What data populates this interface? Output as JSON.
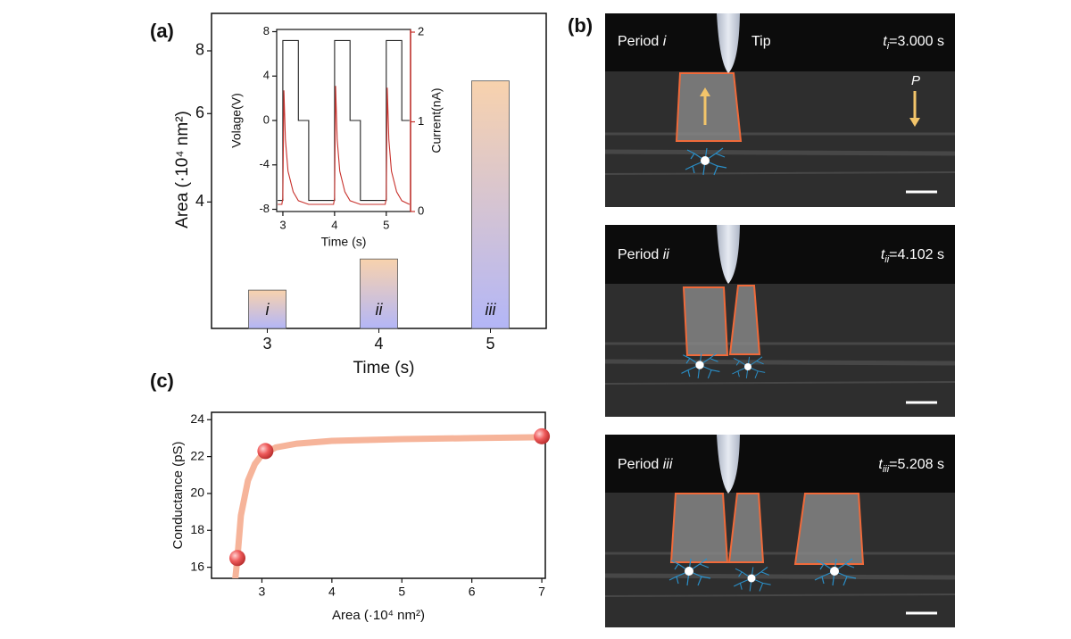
{
  "panel_labels": {
    "a": "(a)",
    "b": "(b)",
    "c": "(c)"
  },
  "chart_data": [
    {
      "type": "bar",
      "xlabel": "Time (s)",
      "ylabel": "Area (·10⁴ nm²)",
      "categories": [
        "3",
        "4",
        "5"
      ],
      "values": [
        2.67,
        3.08,
        6.97
      ],
      "bar_labels": [
        "i",
        "ii",
        "iii"
      ],
      "ylim": [
        2.24,
        9.5
      ],
      "yticks": [
        4,
        6,
        8
      ],
      "log_y": true,
      "colors": [
        "#f8d2ad",
        "#b3b6f7"
      ]
    },
    {
      "type": "line",
      "xlabel": "Time (s)",
      "ylabel": "Volage(V)",
      "y2label": "Current(nA)",
      "xlim": [
        2.88,
        5.47
      ],
      "xticks": [
        3,
        4,
        5
      ],
      "ylim": [
        -8.2,
        8.2
      ],
      "yticks": [
        -8,
        -4,
        0,
        4,
        8
      ],
      "y2lim": [
        0,
        2.03
      ],
      "y2ticks": [
        0,
        1,
        2
      ],
      "y2color": "#c8322d",
      "series": [
        {
          "color": "#222222",
          "x": [
            2.9,
            3.0,
            3.0,
            3.3,
            3.3,
            3.5,
            3.5,
            4.0,
            4.0,
            4.3,
            4.3,
            4.5,
            4.5,
            5.0,
            5.0,
            5.3,
            5.3,
            5.45
          ],
          "values": [
            -7.2,
            -7.2,
            7.2,
            7.2,
            0,
            0,
            -7.2,
            -7.2,
            7.2,
            7.2,
            0,
            0,
            -7.2,
            -7.2,
            7.2,
            7.2,
            0,
            0
          ]
        },
        {
          "color": "#c8322d",
          "axis": "y2",
          "x": [
            2.9,
            2.98,
            3.0,
            3.02,
            3.05,
            3.1,
            3.2,
            3.3,
            3.5,
            3.9,
            3.98,
            4.0,
            4.02,
            4.05,
            4.1,
            4.2,
            4.3,
            4.5,
            4.9,
            4.98,
            5.0,
            5.02,
            5.05,
            5.1,
            5.2,
            5.3,
            5.45
          ],
          "values": [
            0.08,
            0.08,
            0.15,
            1.35,
            0.8,
            0.45,
            0.22,
            0.12,
            0.08,
            0.08,
            0.08,
            0.15,
            1.4,
            0.8,
            0.45,
            0.22,
            0.12,
            0.08,
            0.08,
            0.08,
            0.15,
            1.38,
            0.8,
            0.45,
            0.22,
            0.12,
            0.08
          ]
        }
      ]
    },
    {
      "type": "scatter",
      "xlabel": "Area (·10⁴ nm²)",
      "ylabel": "Conductance (pS)",
      "xlim": [
        2.28,
        7.05
      ],
      "xticks": [
        3,
        4,
        5,
        6,
        7
      ],
      "ylim": [
        15.4,
        24.4
      ],
      "yticks": [
        16,
        18,
        20,
        22,
        24
      ],
      "series": [
        {
          "type": "line",
          "color": "#f6b49a",
          "x": [
            2.62,
            2.65,
            2.7,
            2.8,
            2.9,
            3.0,
            3.2,
            3.5,
            4,
            5,
            6,
            7
          ],
          "values": [
            15.4,
            16.5,
            18.8,
            20.7,
            21.6,
            22.1,
            22.5,
            22.7,
            22.85,
            22.95,
            23.0,
            23.05
          ]
        },
        {
          "type": "scatter",
          "color": "#ee5a5a",
          "x": [
            2.65,
            3.05,
            7.0
          ],
          "values": [
            16.5,
            22.3,
            23.1
          ]
        }
      ]
    }
  ],
  "micrographs": [
    {
      "period": "Period",
      "period_num": "i",
      "t_symbol": "t",
      "t_sub": "i",
      "t_value": "=3.000 s"
    },
    {
      "period": "Period",
      "period_num": "ii",
      "t_symbol": "t",
      "t_sub": "ii",
      "t_value": "=4.102 s"
    },
    {
      "period": "Period",
      "period_num": "iii",
      "t_symbol": "t",
      "t_sub": "iii",
      "t_value": "=5.208 s"
    }
  ],
  "tip_label": "Tip",
  "polarization_label": "P"
}
